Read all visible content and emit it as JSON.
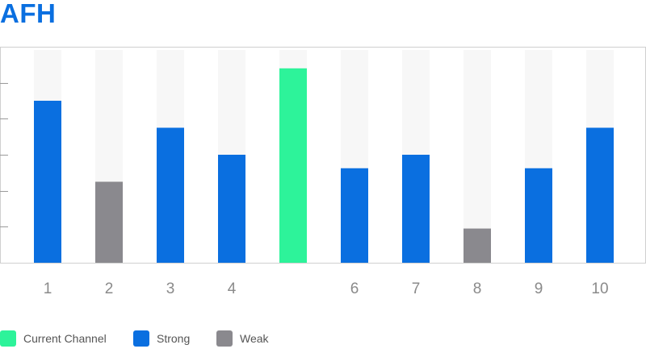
{
  "title": "AFH",
  "colors": {
    "current": "#2df39a",
    "strong": "#0a6fe0",
    "weak": "#8a898e",
    "bg_bar": "#f7f7f7",
    "axis": "#cfcfcf"
  },
  "legend": [
    {
      "label": "Current Channel",
      "key": "current"
    },
    {
      "label": "Strong",
      "key": "strong"
    },
    {
      "label": "Weak",
      "key": "weak"
    }
  ],
  "chart_data": {
    "type": "bar",
    "categories": [
      "1",
      "2",
      "3",
      "4",
      "",
      "6",
      "7",
      "8",
      "9",
      "10"
    ],
    "values": [
      4.5,
      2.25,
      3.75,
      3.0,
      5.4,
      2.625,
      3.0,
      0.95,
      2.625,
      3.75
    ],
    "status": [
      "strong",
      "weak",
      "strong",
      "strong",
      "current",
      "strong",
      "strong",
      "weak",
      "strong",
      "strong"
    ],
    "ylim": [
      0,
      6
    ],
    "yticks": [
      1,
      2,
      3,
      4,
      5
    ],
    "title": "AFH",
    "xlabel": "",
    "ylabel": "",
    "grid": false,
    "legend_position": "bottom-left"
  }
}
